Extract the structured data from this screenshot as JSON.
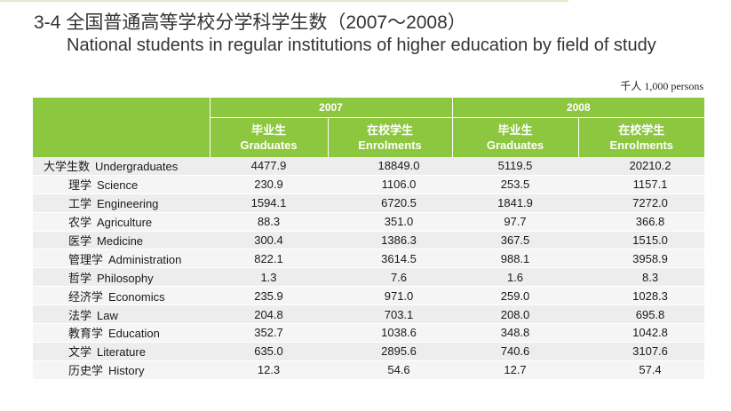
{
  "title": {
    "number": "3-4",
    "chinese": "全国普通高等学校分学科学生数（2007～2008）",
    "english": "National students in regular institutions of higher education by field of study"
  },
  "unit": "千人 1,000 persons",
  "header": {
    "years": [
      "2007",
      "2008"
    ],
    "graduates_cn": "毕业生",
    "graduates_en": "Graduates",
    "enrolments_cn": "在校学生",
    "enrolments_en": "Enrolments"
  },
  "rows": [
    {
      "cn": "大学生数",
      "en": "Undergraduates",
      "g2007": "4477.9",
      "e2007": "18849.0",
      "g2008": "5119.5",
      "e2008": "20210.2"
    },
    {
      "cn": "理学",
      "en": "Science",
      "g2007": "230.9",
      "e2007": "1106.0",
      "g2008": "253.5",
      "e2008": "1157.1"
    },
    {
      "cn": "工学",
      "en": "Engineering",
      "g2007": "1594.1",
      "e2007": "6720.5",
      "g2008": "1841.9",
      "e2008": "7272.0"
    },
    {
      "cn": "农学",
      "en": "Agriculture",
      "g2007": "88.3",
      "e2007": "351.0",
      "g2008": "97.7",
      "e2008": "366.8"
    },
    {
      "cn": "医学",
      "en": "Medicine",
      "g2007": "300.4",
      "e2007": "1386.3",
      "g2008": "367.5",
      "e2008": "1515.0"
    },
    {
      "cn": "管理学",
      "en": "Administration",
      "g2007": "822.1",
      "e2007": "3614.5",
      "g2008": "988.1",
      "e2008": "3958.9"
    },
    {
      "cn": "哲学",
      "en": "Philosophy",
      "g2007": "1.3",
      "e2007": "7.6",
      "g2008": "1.6",
      "e2008": "8.3"
    },
    {
      "cn": "经济学",
      "en": "Economics",
      "g2007": "235.9",
      "e2007": "971.0",
      "g2008": "259.0",
      "e2008": "1028.3"
    },
    {
      "cn": "法学",
      "en": "Law",
      "g2007": "204.8",
      "e2007": "703.1",
      "g2008": "208.0",
      "e2008": "695.8"
    },
    {
      "cn": "教育学",
      "en": "Education",
      "g2007": "352.7",
      "e2007": "1038.6",
      "g2008": "348.8",
      "e2008": "1042.8"
    },
    {
      "cn": "文学",
      "en": "Literature",
      "g2007": "635.0",
      "e2007": "2895.6",
      "g2008": "740.6",
      "e2008": "3107.6"
    },
    {
      "cn": "历史学",
      "en": "History",
      "g2007": "12.3",
      "e2007": "54.6",
      "g2008": "12.7",
      "e2008": "57.4"
    }
  ],
  "colors": {
    "header_green": "#8dc63f",
    "row_odd": "#ededed",
    "row_even": "#f5f5f5"
  }
}
